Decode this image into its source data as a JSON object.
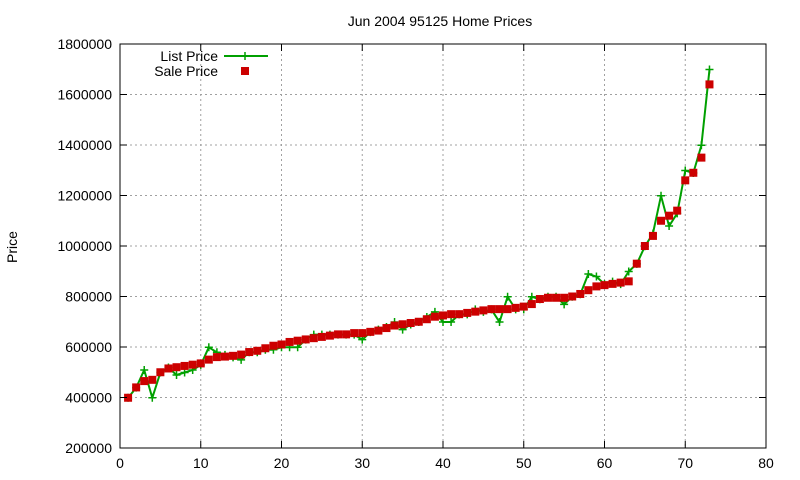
{
  "chart_data": {
    "type": "line",
    "title": "Jun 2004 95125 Home Prices",
    "xlabel": "",
    "ylabel": "Price",
    "xlim": [
      0,
      80
    ],
    "ylim": [
      200000,
      1800000
    ],
    "xticks": [
      0,
      10,
      20,
      30,
      40,
      50,
      60,
      70,
      80
    ],
    "yticks": [
      200000,
      400000,
      600000,
      800000,
      1000000,
      1200000,
      1400000,
      1600000,
      1800000
    ],
    "grid": true,
    "legend_position": "top-left",
    "series": [
      {
        "name": "List Price",
        "style": "line-plus",
        "color": "#00a000",
        "x": [
          1,
          2,
          3,
          4,
          5,
          6,
          7,
          8,
          9,
          10,
          11,
          12,
          13,
          14,
          15,
          16,
          17,
          18,
          19,
          20,
          21,
          22,
          23,
          24,
          25,
          26,
          27,
          28,
          29,
          30,
          31,
          32,
          33,
          34,
          35,
          36,
          37,
          38,
          39,
          40,
          41,
          42,
          43,
          44,
          45,
          46,
          47,
          48,
          49,
          50,
          51,
          52,
          53,
          54,
          55,
          56,
          57,
          58,
          59,
          60,
          61,
          62,
          63,
          64,
          65,
          66,
          67,
          68,
          69,
          70,
          71,
          72,
          73
        ],
        "values": [
          399000,
          439000,
          509000,
          399000,
          499000,
          519000,
          489000,
          499000,
          509000,
          529000,
          599000,
          579000,
          569000,
          559000,
          549000,
          579000,
          579000,
          589000,
          589000,
          599000,
          599000,
          599000,
          629000,
          649000,
          649000,
          649000,
          649000,
          649000,
          649000,
          629000,
          659000,
          669000,
          679000,
          699000,
          669000,
          689000,
          699000,
          719000,
          739000,
          699000,
          699000,
          729000,
          729000,
          749000,
          739000,
          749000,
          699000,
          799000,
          749000,
          749000,
          799000,
          789000,
          799000,
          799000,
          769000,
          799000,
          809000,
          889000,
          879000,
          849000,
          859000,
          849000,
          899000,
          929000,
          999000,
          1049000,
          1199000,
          1079000,
          1129000,
          1299000,
          1289000,
          1399000,
          1699000
        ]
      },
      {
        "name": "Sale Price",
        "style": "points-square",
        "color": "#cc0000",
        "x": [
          1,
          2,
          3,
          4,
          5,
          6,
          7,
          8,
          9,
          10,
          11,
          12,
          13,
          14,
          15,
          16,
          17,
          18,
          19,
          20,
          21,
          22,
          23,
          24,
          25,
          26,
          27,
          28,
          29,
          30,
          31,
          32,
          33,
          34,
          35,
          36,
          37,
          38,
          39,
          40,
          41,
          42,
          43,
          44,
          45,
          46,
          47,
          48,
          49,
          50,
          51,
          52,
          53,
          54,
          55,
          56,
          57,
          58,
          59,
          60,
          61,
          62,
          63,
          64,
          65,
          66,
          67,
          68,
          69,
          70,
          71,
          72,
          73
        ],
        "values": [
          399000,
          440000,
          465000,
          470000,
          500000,
          515000,
          520000,
          525000,
          530000,
          535000,
          550000,
          560000,
          562000,
          565000,
          570000,
          580000,
          585000,
          595000,
          605000,
          610000,
          620000,
          625000,
          630000,
          635000,
          640000,
          645000,
          650000,
          650000,
          655000,
          655000,
          660000,
          665000,
          675000,
          685000,
          690000,
          695000,
          700000,
          710000,
          720000,
          725000,
          730000,
          730000,
          735000,
          740000,
          745000,
          750000,
          750000,
          750000,
          755000,
          760000,
          770000,
          790000,
          795000,
          795000,
          795000,
          800000,
          810000,
          825000,
          840000,
          845000,
          850000,
          855000,
          860000,
          930000,
          1000000,
          1040000,
          1100000,
          1120000,
          1140000,
          1260000,
          1290000,
          1350000,
          1640000
        ]
      }
    ]
  }
}
